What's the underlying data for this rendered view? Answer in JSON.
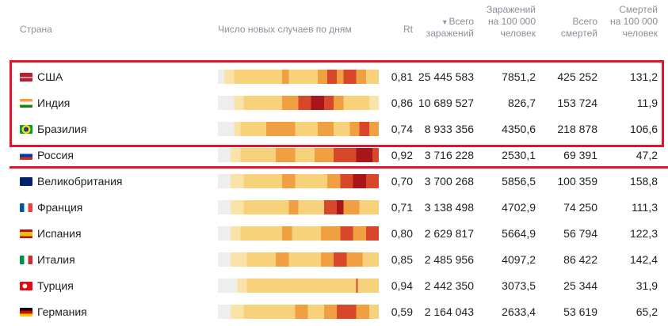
{
  "table": {
    "header": [
      [
        "Страна"
      ],
      [
        "Число новых случаев по дням"
      ],
      [
        "Rt"
      ],
      [
        "Всего",
        "заражений"
      ],
      [
        "Заражений",
        "на 100 000",
        "человек"
      ],
      [
        "Всего",
        "смертей"
      ],
      [
        "Смертей",
        "на 100 000",
        "человек"
      ]
    ],
    "rows": [
      [
        "США",
        "0,81",
        "25 445 583",
        "7851,2",
        "425 252",
        "131,2"
      ],
      [
        "Индия",
        "0,86",
        "10 689 527",
        "826,7",
        "153 724",
        "11,9"
      ],
      [
        "Бразилия",
        "0,74",
        "8 933 356",
        "4350,6",
        "218 878",
        "106,6"
      ],
      [
        "Россия",
        "0,92",
        "3 716 228",
        "2530,1",
        "69 391",
        "47,2"
      ],
      [
        "Великобритания",
        "0,70",
        "3 700 268",
        "5856,5",
        "100 359",
        "158,8"
      ],
      [
        "Франция",
        "0,71",
        "3 138 498",
        "4702,9",
        "74 250",
        "111,3"
      ],
      [
        "Испания",
        "0,80",
        "2 629 817",
        "5664,9",
        "56 794",
        "122,3"
      ],
      [
        "Италия",
        "0,85",
        "2 485 956",
        "4097,2",
        "86 422",
        "142,4"
      ],
      [
        "Турция",
        "0,94",
        "2 442 350",
        "3073,5",
        "25 344",
        "31,9"
      ],
      [
        "Германия",
        "0,59",
        "2 164 043",
        "2633,4",
        "53 619",
        "65,2"
      ]
    ]
  }
}
